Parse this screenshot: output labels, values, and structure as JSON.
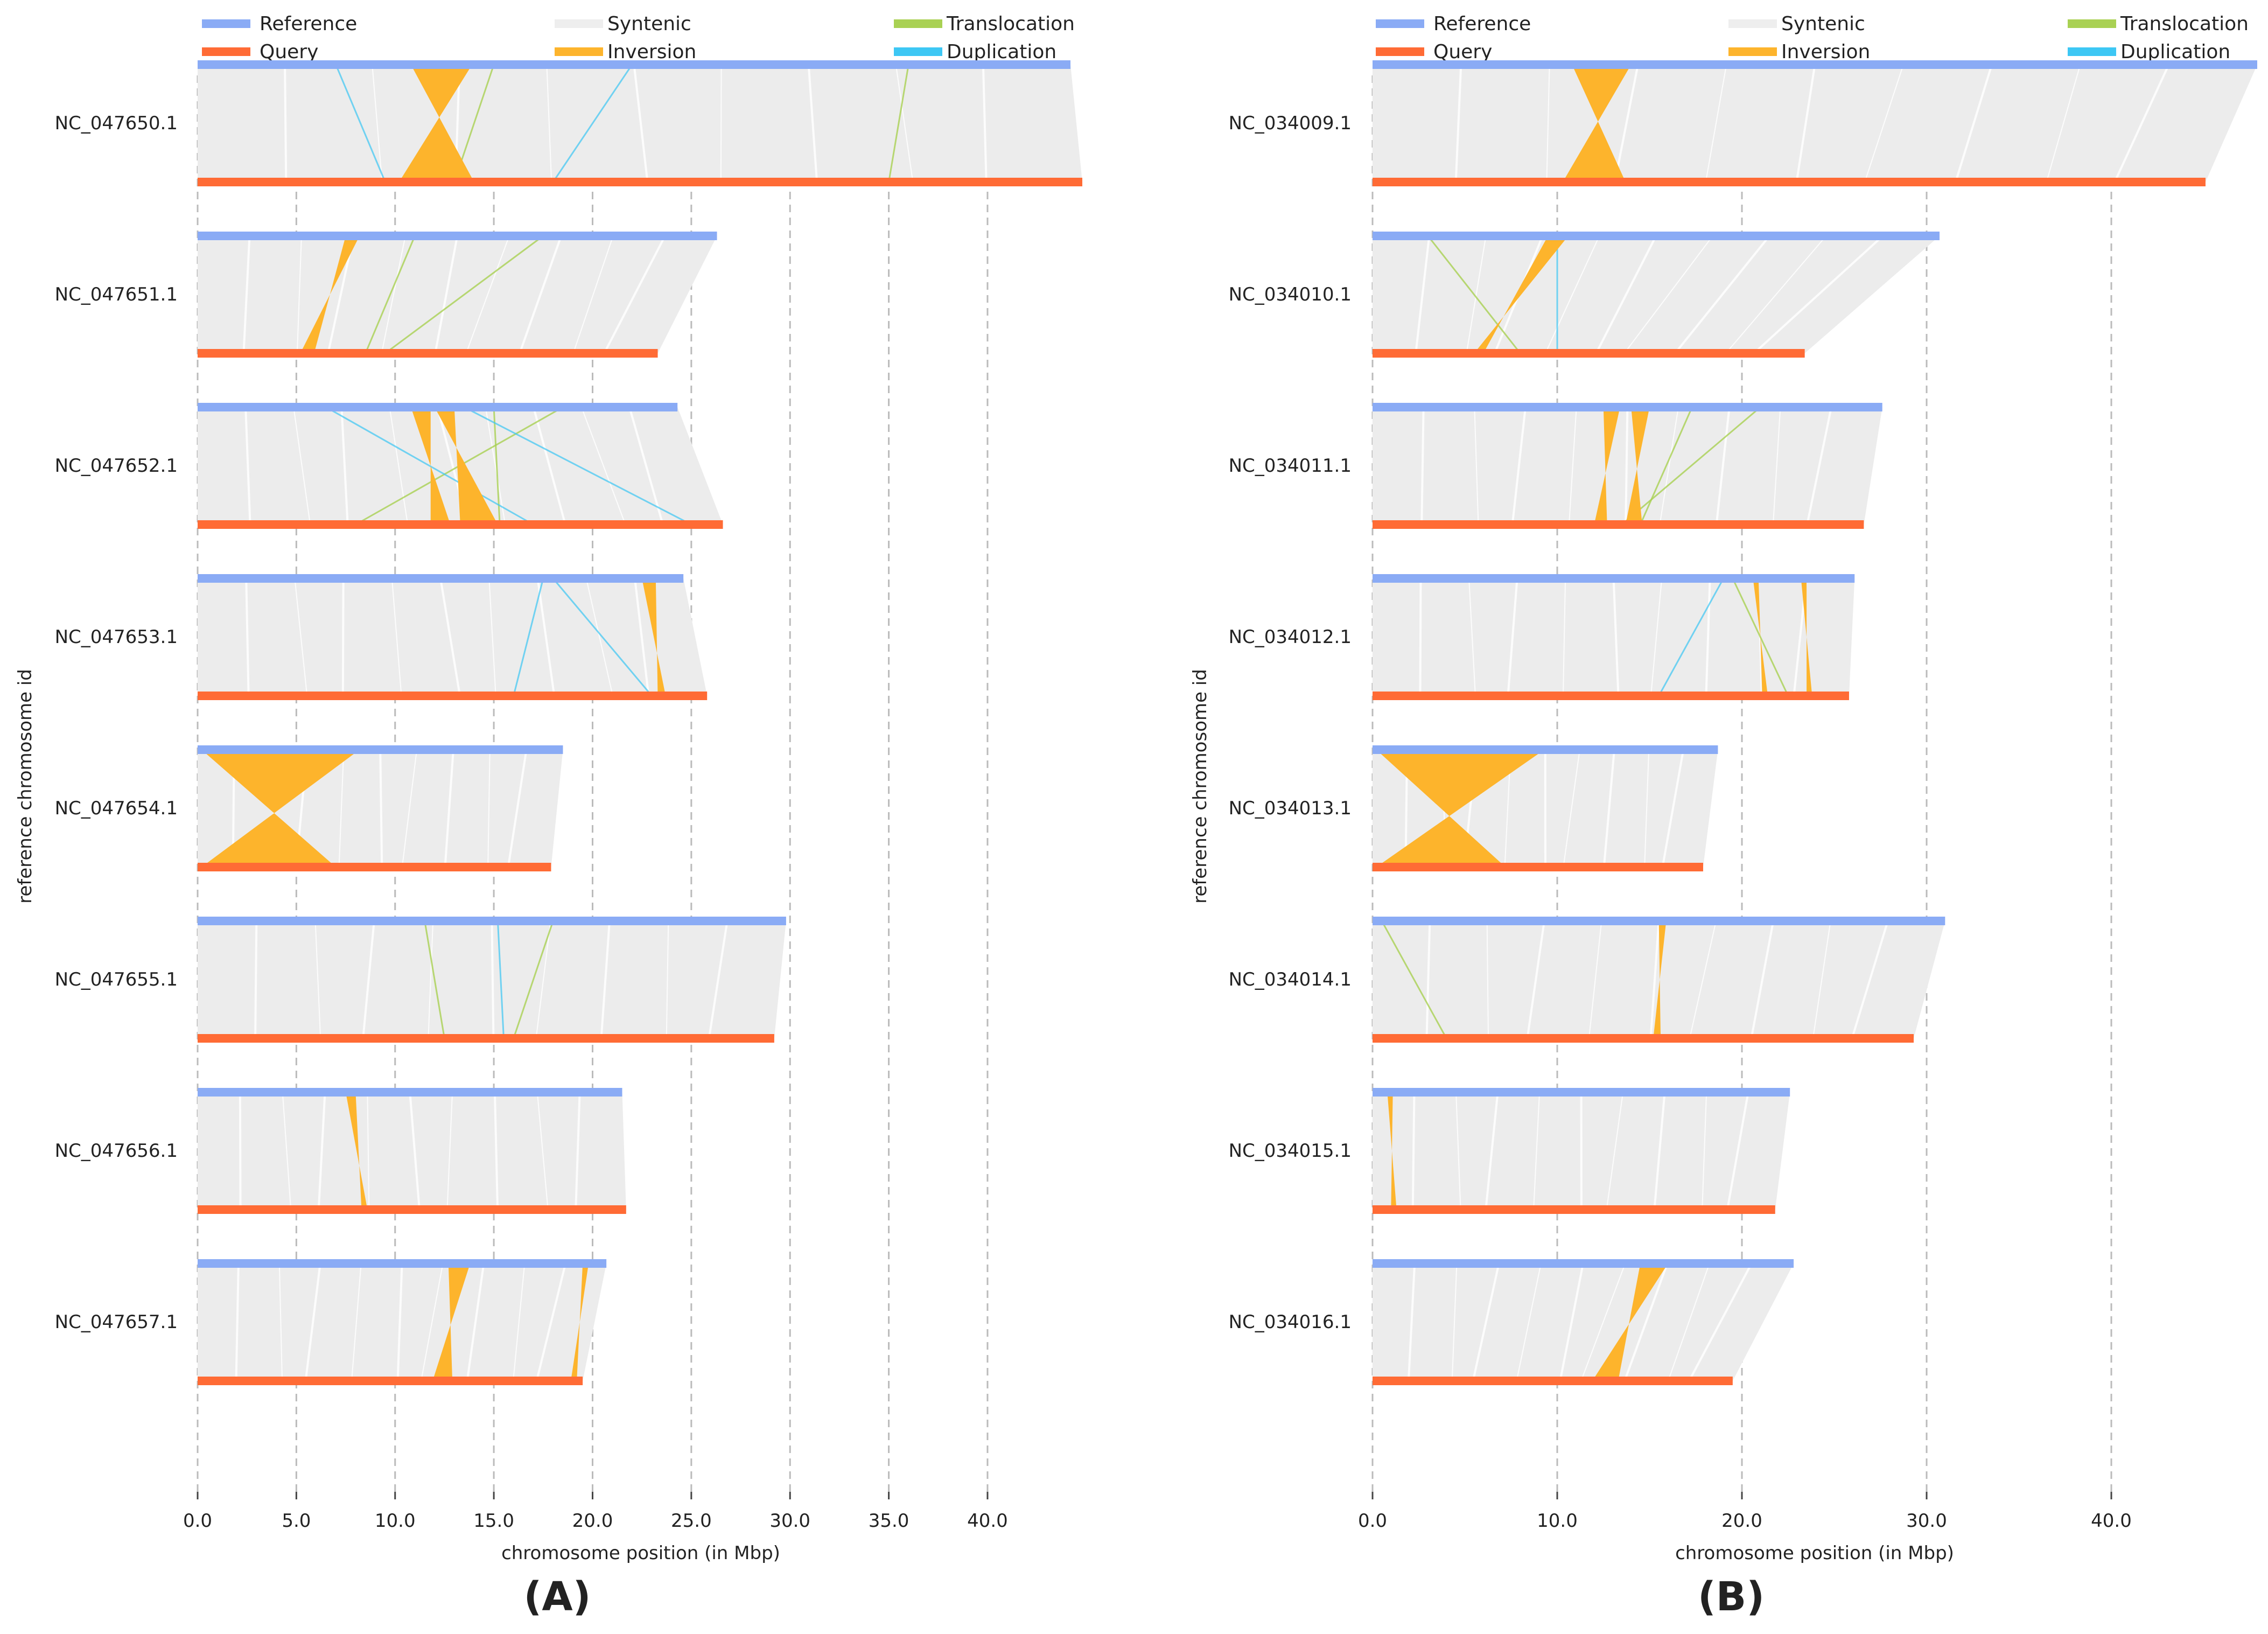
{
  "legend": {
    "reference": "Reference",
    "query": "Query",
    "syntenic": "Syntenic",
    "inversion": "Inversion",
    "translocation": "Translocation",
    "duplication": "Duplication"
  },
  "colors": {
    "reference": "#8aabf5",
    "query": "#ff6b35",
    "syntenic": "#e3e3e3",
    "inversion": "#fdb42c",
    "translocation": "#a9d153",
    "duplication": "#3dc7f4",
    "grid": "#bbbbbb",
    "text": "#222222"
  },
  "chart_data": [
    {
      "panel_label": "A",
      "type": "synteny",
      "xlabel": "chromosome position (in Mbp)",
      "ylabel": "reference chromosome id",
      "xlim": [
        0,
        44.8
      ],
      "xticks": [
        0,
        5,
        10,
        15,
        20,
        25,
        30,
        35,
        40
      ],
      "xtick_labels": [
        "0.0",
        "5.0",
        "10.0",
        "15.0",
        "20.0",
        "25.0",
        "30.0",
        "35.0",
        "40.0"
      ],
      "chromosomes": [
        {
          "id": "NC_047650.1",
          "ref_length": 44.2,
          "query_length": 44.8,
          "inversions": [
            {
              "ref": [
                10.8,
                13.9
              ],
              "query": [
                10.2,
                14.0
              ]
            }
          ],
          "translocations": [
            [
              15.0,
              13.0
            ],
            [
              36.0,
              35.0
            ]
          ],
          "duplications": [
            [
              7.0,
              9.5
            ],
            [
              22.0,
              18.0
            ]
          ]
        },
        {
          "id": "NC_047651.1",
          "ref_length": 26.3,
          "query_length": 23.3,
          "inversions": [
            {
              "ref": [
                7.5,
                8.2
              ],
              "query": [
                5.2,
                5.9
              ]
            }
          ],
          "translocations": [
            [
              11.0,
              8.5
            ],
            [
              17.5,
              9.5
            ]
          ],
          "duplications": []
        },
        {
          "id": "NC_047652.1",
          "ref_length": 24.3,
          "query_length": 26.6,
          "inversions": [
            {
              "ref": [
                10.8,
                11.8
              ],
              "query": [
                11.8,
                12.8
              ]
            },
            {
              "ref": [
                12.0,
                13.0
              ],
              "query": [
                13.3,
                15.2
              ]
            }
          ],
          "translocations": [
            [
              15.0,
              15.3
            ],
            [
              18.5,
              8.0
            ]
          ],
          "duplications": [
            [
              6.5,
              17.0
            ],
            [
              13.5,
              25.0
            ]
          ]
        },
        {
          "id": "NC_047653.1",
          "ref_length": 24.6,
          "query_length": 25.8,
          "inversions": [
            {
              "ref": [
                22.5,
                23.2
              ],
              "query": [
                23.3,
                23.7
              ]
            }
          ],
          "translocations": [],
          "duplications": [
            [
              17.5,
              16.0
            ],
            [
              18.0,
              23.0
            ]
          ]
        },
        {
          "id": "NC_047654.1",
          "ref_length": 18.5,
          "query_length": 17.9,
          "inversions": [
            {
              "ref": [
                0.2,
                8.2
              ],
              "query": [
                0.2,
                7.0
              ]
            }
          ],
          "translocations": [],
          "duplications": []
        },
        {
          "id": "NC_047655.1",
          "ref_length": 29.8,
          "query_length": 29.2,
          "inversions": [],
          "translocations": [
            [
              18.0,
              16.0
            ],
            [
              11.5,
              12.5
            ]
          ],
          "duplications": [
            [
              15.2,
              15.5
            ]
          ]
        },
        {
          "id": "NC_047656.1",
          "ref_length": 21.5,
          "query_length": 21.7,
          "inversions": [
            {
              "ref": [
                7.5,
                8.0
              ],
              "query": [
                8.3,
                8.6
              ]
            }
          ],
          "translocations": [],
          "duplications": []
        },
        {
          "id": "NC_047657.1",
          "ref_length": 20.7,
          "query_length": 19.5,
          "inversions": [
            {
              "ref": [
                12.7,
                13.8
              ],
              "query": [
                11.9,
                12.9
              ]
            },
            {
              "ref": [
                19.5,
                19.8
              ],
              "query": [
                18.9,
                19.2
              ]
            }
          ],
          "translocations": [],
          "duplications": []
        }
      ]
    },
    {
      "panel_label": "B",
      "type": "synteny",
      "xlabel": "chromosome position (in Mbp)",
      "ylabel": "reference chromosome id",
      "xlim": [
        0,
        47.9
      ],
      "xticks": [
        0,
        10,
        20,
        30,
        40
      ],
      "xtick_labels": [
        "0.0",
        "10.0",
        "20.0",
        "30.0",
        "40.0"
      ],
      "chromosomes": [
        {
          "id": "NC_034009.1",
          "ref_length": 47.9,
          "query_length": 45.1,
          "inversions": [
            {
              "ref": [
                10.8,
                14.0
              ],
              "query": [
                10.3,
                13.7
              ]
            }
          ],
          "translocations": [],
          "duplications": []
        },
        {
          "id": "NC_034010.1",
          "ref_length": 30.7,
          "query_length": 23.4,
          "inversions": [
            {
              "ref": [
                9.5,
                10.6
              ],
              "query": [
                5.5,
                6.0
              ]
            }
          ],
          "translocations": [
            [
              3.0,
              8.0
            ]
          ],
          "duplications": [
            [
              10.0,
              10.0
            ]
          ]
        },
        {
          "id": "NC_034011.1",
          "ref_length": 27.6,
          "query_length": 26.6,
          "inversions": [
            {
              "ref": [
                12.5,
                13.4
              ],
              "query": [
                12.0,
                12.7
              ]
            },
            {
              "ref": [
                14.0,
                15.0
              ],
              "query": [
                13.7,
                14.6
              ]
            }
          ],
          "translocations": [
            [
              17.3,
              14.5
            ],
            [
              21.0,
              13.5
            ]
          ],
          "duplications": []
        },
        {
          "id": "NC_034012.1",
          "ref_length": 26.1,
          "query_length": 25.8,
          "inversions": [
            {
              "ref": [
                20.6,
                20.9
              ],
              "query": [
                21.1,
                21.4
              ]
            },
            {
              "ref": [
                23.2,
                23.5
              ],
              "query": [
                23.5,
                23.8
              ]
            }
          ],
          "translocations": [
            [
              19.5,
              22.5
            ]
          ],
          "duplications": [
            [
              19.0,
              15.5
            ]
          ]
        },
        {
          "id": "NC_034013.1",
          "ref_length": 18.7,
          "query_length": 17.9,
          "inversions": [
            {
              "ref": [
                0.2,
                9.3
              ],
              "query": [
                0.2,
                7.2
              ]
            }
          ],
          "translocations": [],
          "duplications": []
        },
        {
          "id": "NC_034014.1",
          "ref_length": 31.0,
          "query_length": 29.3,
          "inversions": [
            {
              "ref": [
                15.5,
                15.9
              ],
              "query": [
                15.2,
                15.6
              ]
            }
          ],
          "translocations": [
            [
              0.5,
              4.0
            ]
          ],
          "duplications": []
        },
        {
          "id": "NC_034015.1",
          "ref_length": 22.6,
          "query_length": 21.8,
          "inversions": [
            {
              "ref": [
                0.8,
                1.1
              ],
              "query": [
                1.0,
                1.3
              ]
            }
          ],
          "translocations": [],
          "duplications": []
        },
        {
          "id": "NC_034016.1",
          "ref_length": 22.8,
          "query_length": 19.5,
          "inversions": [
            {
              "ref": [
                14.5,
                16.0
              ],
              "query": [
                11.9,
                13.3
              ]
            }
          ],
          "translocations": [],
          "duplications": []
        }
      ]
    }
  ]
}
